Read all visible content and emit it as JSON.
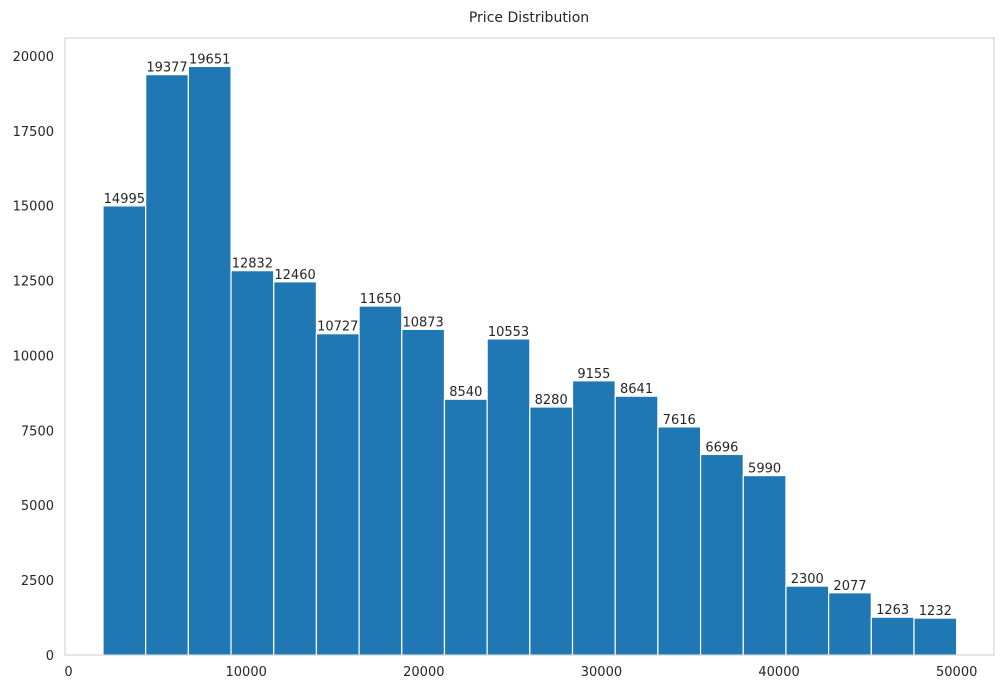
{
  "chart_data": {
    "type": "bar",
    "title": "Price Distribution",
    "xlabel": "",
    "ylabel": "",
    "xlim": [
      -200,
      52100
    ],
    "ylim": [
      0,
      20600
    ],
    "bin_edges": [
      1939.0,
      4342.0,
      6745.0,
      9148.0,
      11551.0,
      13954.0,
      16357.0,
      18760.0,
      21163.0,
      23566.0,
      25969.0,
      28372.0,
      30775.0,
      33178.0,
      35581.0,
      37984.0,
      40387.0,
      42790.0,
      45193.0,
      47596.0,
      49999.0
    ],
    "values": [
      14995,
      19377,
      19651,
      12832,
      12460,
      10727,
      11650,
      10873,
      8540,
      10553,
      8280,
      9155,
      8641,
      7616,
      6696,
      5990,
      2300,
      2077,
      1263,
      1232
    ],
    "bar_labels": [
      "14995",
      "19377",
      "19651",
      "12832",
      "12460",
      "10727",
      "11650",
      "10873",
      "8540",
      "10553",
      "8280",
      "9155",
      "8641",
      "7616",
      "6696",
      "5990",
      "2300",
      "2077",
      "1263",
      "1232"
    ],
    "x_ticks": [
      0,
      10000,
      20000,
      30000,
      40000,
      50000
    ],
    "x_tick_labels": [
      "0",
      "10000",
      "20000",
      "30000",
      "40000",
      "50000"
    ],
    "y_ticks": [
      0,
      2500,
      5000,
      7500,
      10000,
      12500,
      15000,
      17500,
      20000
    ],
    "y_tick_labels": [
      "0",
      "2500",
      "5000",
      "7500",
      "10000",
      "12500",
      "15000",
      "17500",
      "20000"
    ],
    "grid": false,
    "legend": "none",
    "bar_color": "#1f77b4",
    "bar_edge_color": "#ffffff",
    "axes_edge_color": "#cccccc",
    "text_color": "#262626"
  }
}
